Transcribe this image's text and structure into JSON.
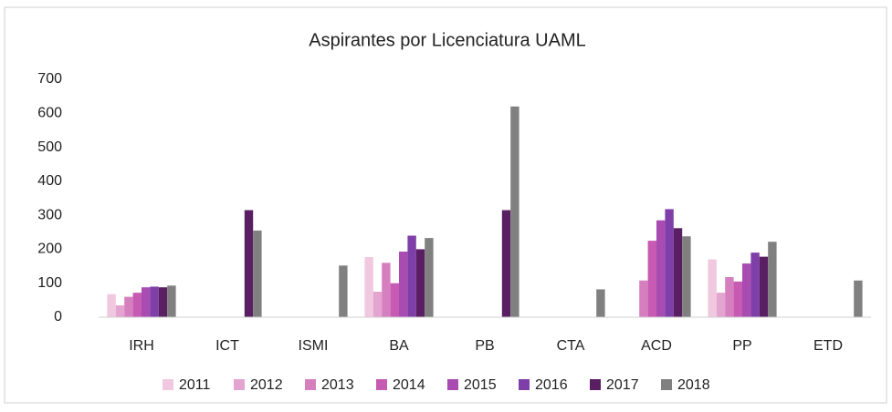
{
  "chart_data": {
    "type": "bar",
    "title": "Aspirantes por Licenciatura UAML",
    "categories": [
      "IRH",
      "ICT",
      "ISMI",
      "BA",
      "PB",
      "CTA",
      "ACD",
      "PP",
      "ETD"
    ],
    "series": [
      {
        "name": "2011",
        "color": "#f0c8e0",
        "values": [
          68,
          null,
          null,
          177,
          null,
          null,
          null,
          170,
          null
        ]
      },
      {
        "name": "2012",
        "color": "#e3a4cf",
        "values": [
          35,
          null,
          null,
          75,
          null,
          null,
          null,
          72,
          null
        ]
      },
      {
        "name": "2013",
        "color": "#d67fbf",
        "values": [
          60,
          null,
          null,
          160,
          null,
          null,
          108,
          118,
          null
        ]
      },
      {
        "name": "2014",
        "color": "#c75ab3",
        "values": [
          72,
          null,
          null,
          100,
          null,
          null,
          225,
          105,
          null
        ]
      },
      {
        "name": "2015",
        "color": "#a84cb2",
        "values": [
          88,
          null,
          null,
          193,
          null,
          null,
          285,
          158,
          null
        ]
      },
      {
        "name": "2016",
        "color": "#7f3fa8",
        "values": [
          90,
          null,
          null,
          240,
          null,
          null,
          318,
          190,
          null
        ]
      },
      {
        "name": "2017",
        "color": "#5a1f62",
        "values": [
          88,
          315,
          null,
          200,
          315,
          null,
          262,
          178,
          null
        ]
      },
      {
        "name": "2018",
        "color": "#808080",
        "values": [
          93,
          255,
          152,
          233,
          620,
          82,
          238,
          222,
          108
        ]
      }
    ],
    "ylim": [
      0,
      700
    ],
    "yticks": [
      0,
      100,
      200,
      300,
      400,
      500,
      600,
      700
    ],
    "grid": false,
    "legend": "bottom"
  }
}
